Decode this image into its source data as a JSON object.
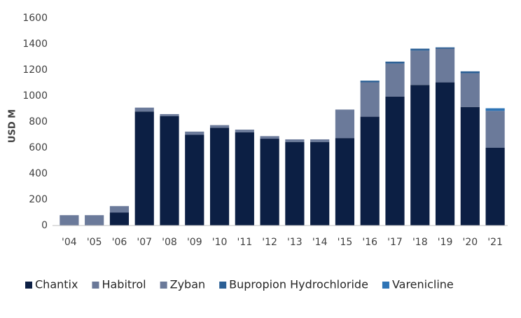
{
  "chart_data": {
    "type": "stacked_bar",
    "y_label": "USD M",
    "categories": [
      "'04",
      "'05",
      "'06",
      "'07",
      "'08",
      "'09",
      "'10",
      "'11",
      "'12",
      "'13",
      "'14",
      "'15",
      "'16",
      "'17",
      "'18",
      "'19",
      "'20",
      "'21"
    ],
    "series": [
      {
        "name": "Chantix",
        "color": "#0c1f44",
        "values": [
          0,
          0,
          100,
          880,
          845,
          700,
          755,
          720,
          670,
          645,
          645,
          675,
          840,
          995,
          1085,
          1105,
          915,
          600
        ]
      },
      {
        "name": "Habitrol",
        "color": "#6a7898",
        "values": [
          0,
          0,
          0,
          0,
          0,
          0,
          0,
          0,
          0,
          0,
          0,
          0,
          0,
          0,
          0,
          0,
          0,
          0
        ]
      },
      {
        "name": "Zyban",
        "color": "#6b7a9a",
        "values": [
          80,
          80,
          50,
          30,
          15,
          25,
          20,
          20,
          20,
          20,
          20,
          220,
          265,
          255,
          265,
          260,
          260,
          285
        ]
      },
      {
        "name": "Bupropion Hydrochloride",
        "color": "#2b5f95",
        "values": [
          0,
          0,
          0,
          0,
          0,
          0,
          0,
          0,
          0,
          0,
          0,
          0,
          13,
          15,
          15,
          10,
          15,
          0
        ]
      },
      {
        "name": "Varenicline",
        "color": "#2e74b5",
        "values": [
          0,
          0,
          0,
          0,
          0,
          0,
          0,
          0,
          0,
          0,
          0,
          0,
          0,
          0,
          0,
          0,
          0,
          20
        ]
      }
    ],
    "ylim": [
      0,
      1600
    ],
    "yticks": [
      0,
      200,
      400,
      600,
      800,
      1000,
      1200,
      1400,
      1600
    ],
    "grid": false,
    "legend_position": "bottom"
  }
}
